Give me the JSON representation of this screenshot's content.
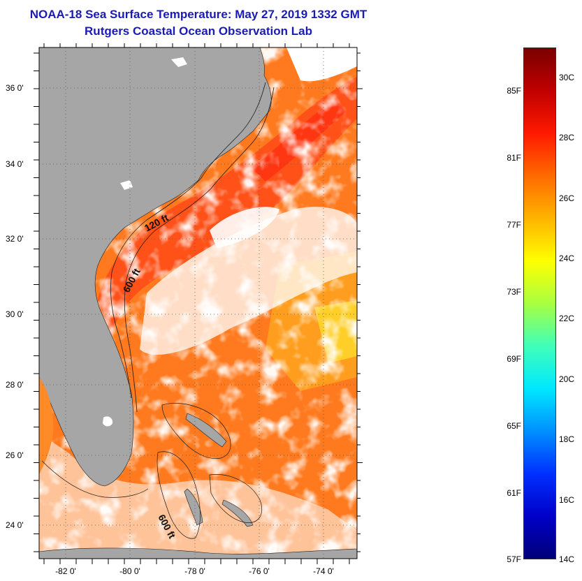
{
  "title": {
    "line1": "NOAA-18 Sea Surface Temperature:  May 27, 2019 1332 GMT",
    "line2": "Rutgers Coastal Ocean Observation Lab"
  },
  "map": {
    "lat_labels": [
      "36 0'",
      "34 0'",
      "32 0'",
      "30 0'",
      "28 0'",
      "26 0'",
      "24 0'"
    ],
    "lon_labels": [
      "-82 0'",
      "-80 0'",
      "-78 0'",
      "-76 0'",
      "-74 0'"
    ],
    "contour_labels": [
      "120 ft",
      "600 ft",
      "600 ft"
    ]
  },
  "colorbar": {
    "fahrenheit_labels": [
      "85F",
      "81F",
      "77F",
      "73F",
      "69F",
      "65F",
      "61F",
      "57F"
    ],
    "celsius_labels": [
      "30C",
      "28C",
      "26C",
      "24C",
      "22C",
      "20C",
      "18C",
      "16C",
      "14C"
    ],
    "colors": [
      "#7a0000",
      "#c00000",
      "#ff1a00",
      "#ff6a00",
      "#ffb300",
      "#ffff00",
      "#a8ff40",
      "#40ffb8",
      "#00e8ff",
      "#0090ff",
      "#0030ff",
      "#0000c8",
      "#00007a"
    ]
  },
  "colors": {
    "title": "#1a1ab4",
    "land": "#a6a6a6",
    "ocean_warm": "#ff7a1e",
    "gulf_stream": "#ff3c14",
    "cloud": "#ffffff"
  }
}
